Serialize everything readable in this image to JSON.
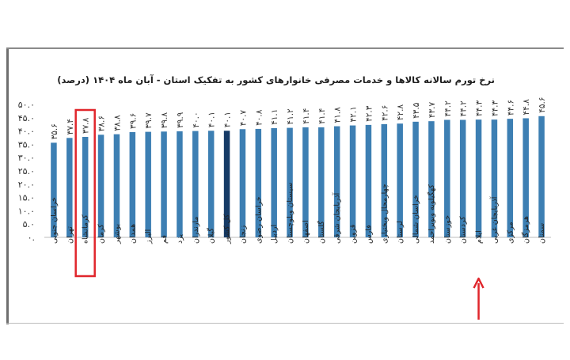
{
  "chart_data": {
    "type": "bar",
    "title": "نرخ تورم سالانه کالاها و خدمات مصرفی خانوارهای کشور به تفکیک استان - آبان ماه ۱۴۰۴ (درصد)",
    "xlabel": "",
    "ylabel": "",
    "ylim": [
      0,
      50
    ],
    "yticks": [
      "۰.",
      "۵.۰",
      "۱۰.۰",
      "۱۵.۰",
      "۲۰.۰",
      "۲۵.۰",
      "۳۰.۰",
      "۳۵.۰",
      "۴۰.۰",
      "۴۵.۰",
      "۵۰.۰"
    ],
    "grid": false,
    "legend": "none",
    "bar_color": "#3d7fb3",
    "highlight_color": "#153a66",
    "categories": [
      "خراسان جنوبی",
      "تهران",
      "کرمانشاه",
      "کرمان",
      "بوشهر",
      "همدان",
      "البرز",
      "قم",
      "یزد",
      "مازندران",
      "گیلان",
      "کل کشور",
      "زنجان",
      "خراسان رضوی",
      "اردبیل",
      "سیستان وبلوچستان",
      "اصفهان",
      "گلستان",
      "آذربایجان شرقی",
      "قزوین",
      "فارس",
      "چهارمحال وبختیاری",
      "لرستان",
      "خراسان شمالی",
      "کهگیلویه وبویراحمد",
      "خوزستان",
      "کردستان",
      "ایلام",
      "آذربایجان غربی",
      "مرکزی",
      "هرمزگان",
      "سمنان"
    ],
    "values": [
      35.6,
      37.4,
      37.8,
      38.6,
      38.8,
      39.6,
      39.7,
      39.8,
      39.9,
      40.0,
      40.1,
      40.1,
      40.7,
      40.8,
      41.1,
      41.2,
      41.4,
      41.4,
      41.8,
      42.1,
      42.3,
      42.6,
      42.8,
      43.5,
      43.7,
      44.2,
      44.2,
      44.3,
      44.3,
      44.6,
      44.8,
      45.6
    ],
    "value_labels": [
      "۳۵.۶",
      "۳۷.۴",
      "۳۷.۸",
      "۳۸.۶",
      "۳۸.۸",
      "۳۹.۶",
      "۳۹.۷",
      "۳۹.۸",
      "۳۹.۹",
      "۴۰.۰",
      "۴۰.۱",
      "۴۰.۱",
      "۴۰.۷",
      "۴۰.۸",
      "۴۱.۱",
      "۴۱.۲",
      "۴۱.۴",
      "۴۱.۴",
      "۴۱.۸",
      "۴۲.۱",
      "۴۲.۳",
      "۴۲.۶",
      "۴۲.۸",
      "۴۳.۵",
      "۴۳.۷",
      "۴۴.۲",
      "۴۴.۲",
      "۴۴.۳",
      "۴۴.۳",
      "۴۴.۶",
      "۴۴.۸",
      "۴۵.۶"
    ],
    "highlight_index": 11,
    "annotations": [
      {
        "type": "box",
        "target": "کرمانشاه",
        "color": "#e0262c"
      },
      {
        "type": "arrow",
        "target": "ایلام",
        "color": "#e0262c"
      }
    ]
  }
}
